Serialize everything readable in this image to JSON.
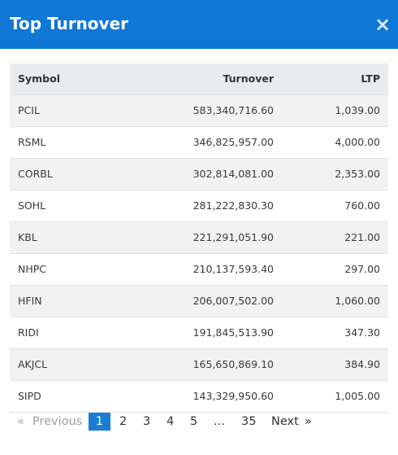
{
  "header": {
    "title": "Top Turnover",
    "close": "×"
  },
  "table": {
    "columns": [
      "Symbol",
      "Turnover",
      "LTP"
    ],
    "rows": [
      [
        "PCIL",
        "583,340,716.60",
        "1,039.00"
      ],
      [
        "RSML",
        "346,825,957.00",
        "4,000.00"
      ],
      [
        "CORBL",
        "302,814,081.00",
        "2,353.00"
      ],
      [
        "SOHL",
        "281,222,830.30",
        "760.00"
      ],
      [
        "KBL",
        "221,291,051.90",
        "221.00"
      ],
      [
        "NHPC",
        "210,137,593.40",
        "297.00"
      ],
      [
        "HFIN",
        "206,007,502.00",
        "1,060.00"
      ],
      [
        "RIDI",
        "191,845,513.90",
        "347.30"
      ],
      [
        "AKJCL",
        "165,650,869.10",
        "384.90"
      ],
      [
        "SIPD",
        "143,329,950.60",
        "1,005.00"
      ]
    ]
  },
  "pagination": {
    "first": "«",
    "previous": "Previous",
    "pages": [
      "1",
      "2",
      "3",
      "4",
      "5",
      "...",
      "35"
    ],
    "active": 0,
    "next": "Next",
    "last": "»"
  }
}
